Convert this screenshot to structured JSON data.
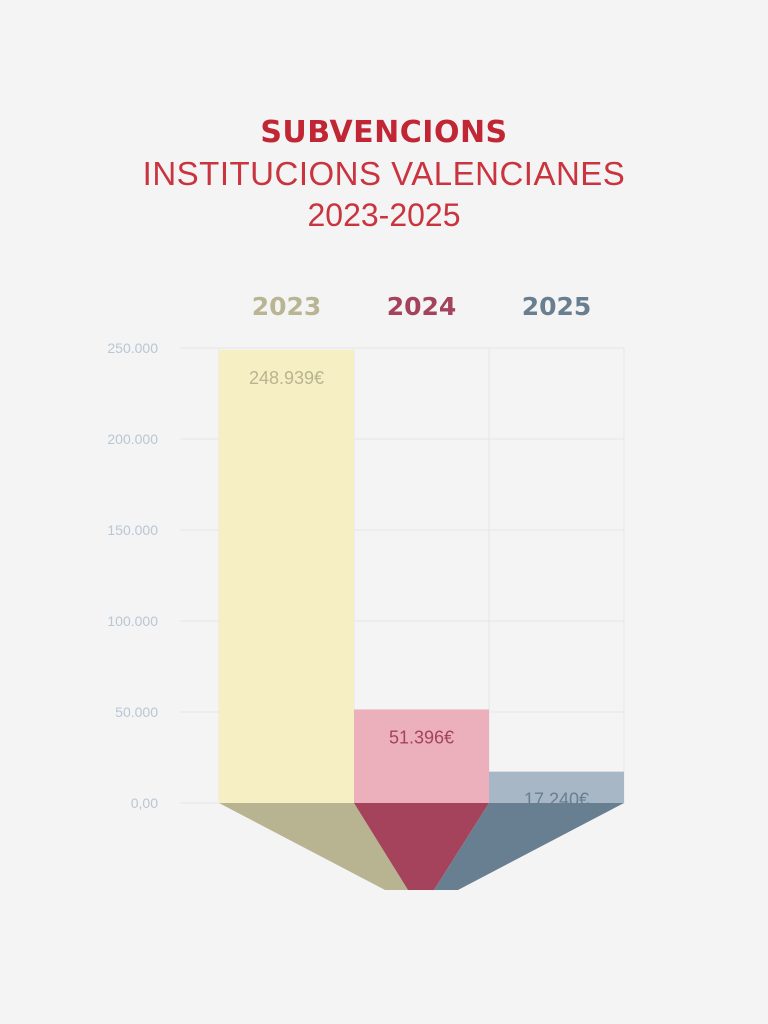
{
  "title": {
    "line1": "SUBVENCIONS",
    "line2": "INSTITUCIONS VALENCIANES",
    "line3": "2023-2025"
  },
  "chart_data": {
    "type": "bar",
    "title": "SUBVENCIONS INSTITUCIONS VALENCIANES 2023-2025",
    "categories": [
      "2023",
      "2024",
      "2025"
    ],
    "values": [
      248939,
      51396,
      17240
    ],
    "data_labels": [
      "248.939€",
      "51.396€",
      "17.240€"
    ],
    "ylim": [
      0,
      250000
    ],
    "yticks": [
      0,
      50000,
      100000,
      150000,
      200000,
      250000
    ],
    "ytick_labels": [
      "0,00",
      "50.000",
      "100.000",
      "150.000",
      "200.000",
      "250.000"
    ],
    "grid": true,
    "colors": {
      "bar_fill": [
        "#f6efc4",
        "#ebb0bc",
        "#a7b7c6"
      ],
      "funnel_fill": [
        "#b8b491",
        "#a4435b",
        "#687f91"
      ],
      "year_label": [
        "#b9b593",
        "#a4435b",
        "#687f91"
      ],
      "data_label": [
        "#b8b491",
        "#a4435b",
        "#687f91"
      ]
    }
  }
}
